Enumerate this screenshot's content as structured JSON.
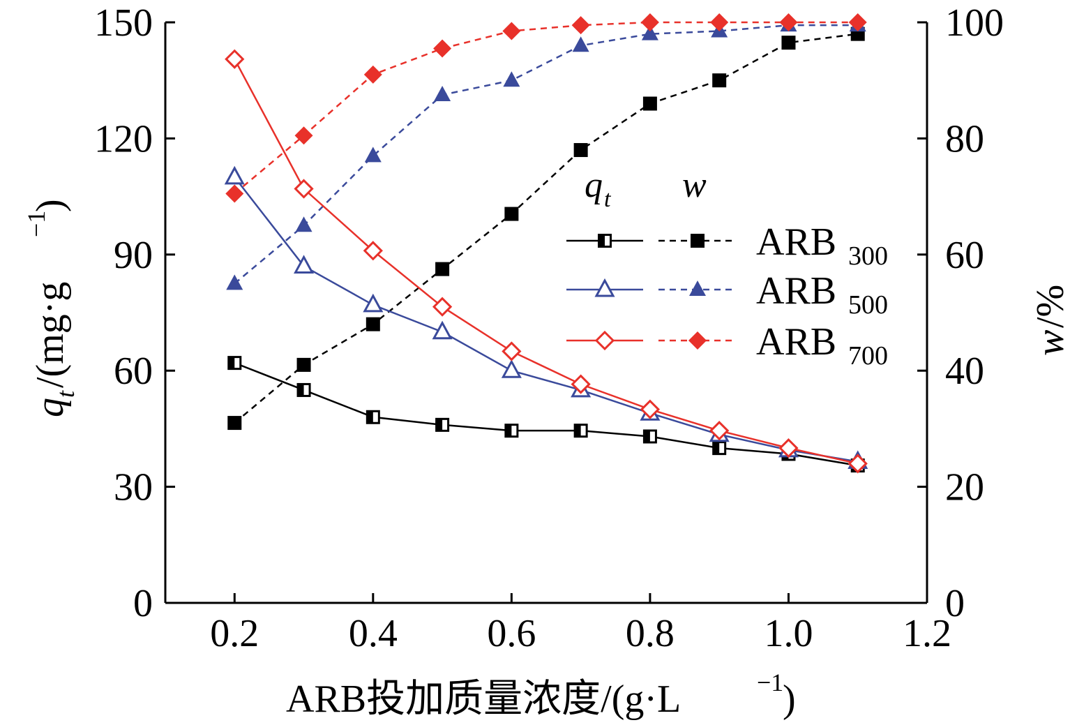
{
  "chart_data": {
    "type": "line",
    "xlabel": "ARB投加质量浓度/(g·L",
    "xlabel_sup": "−1",
    "xlabel_end": ")",
    "ylabel_left": {
      "var": "q",
      "sub": "t",
      "rest": "/(mg·g",
      "sup": "−1",
      "end": ")"
    },
    "ylabel_right": {
      "var": "w",
      "rest": "/%"
    },
    "xlim": [
      0.1,
      1.2
    ],
    "ylim_left": [
      0,
      150
    ],
    "ylim_right": [
      0,
      100
    ],
    "x_ticks": [
      "0.2",
      "0.4",
      "0.6",
      "0.8",
      "1.0",
      "1.2"
    ],
    "y_left_ticks": [
      "0",
      "30",
      "60",
      "90",
      "120",
      "150"
    ],
    "y_right_ticks": [
      "0",
      "20",
      "40",
      "60",
      "80",
      "100"
    ],
    "x": [
      0.2,
      0.3,
      0.4,
      0.5,
      0.6,
      0.7,
      0.8,
      0.9,
      1.0,
      1.1
    ],
    "legend": {
      "position": "right-center",
      "header_qt": "q",
      "header_qt_sub": "t",
      "header_w": "w",
      "entries": [
        {
          "name": "ARB",
          "sub": "300"
        },
        {
          "name": "ARB",
          "sub": "500"
        },
        {
          "name": "ARB",
          "sub": "700"
        }
      ]
    },
    "series": [
      {
        "group": "ARB300",
        "measure": "qt",
        "axis": "left",
        "style": "solid",
        "marker": "half-square",
        "color": "#000000",
        "values": [
          62,
          55,
          48,
          46,
          44.5,
          44.5,
          43,
          40,
          38.5,
          35.5
        ]
      },
      {
        "group": "ARB300",
        "measure": "w",
        "axis": "right",
        "style": "dashed",
        "marker": "filled-square",
        "color": "#000000",
        "values": [
          31,
          41,
          48,
          57.5,
          67,
          78,
          86,
          90,
          96.5,
          98
        ]
      },
      {
        "group": "ARB500",
        "measure": "qt",
        "axis": "left",
        "style": "solid",
        "marker": "open-triangle",
        "color": "#3a4a9b",
        "values": [
          110,
          87,
          77,
          70,
          60,
          55,
          49,
          43.5,
          39.5,
          36.5
        ]
      },
      {
        "group": "ARB500",
        "measure": "w",
        "axis": "right",
        "style": "dashed",
        "marker": "filled-triangle",
        "color": "#3a4a9b",
        "values": [
          55,
          65,
          77,
          87.5,
          90,
          96,
          98,
          98.5,
          99.5,
          99.5
        ]
      },
      {
        "group": "ARB700",
        "measure": "qt",
        "axis": "left",
        "style": "solid",
        "marker": "open-diamond",
        "color": "#e8312a",
        "values": [
          140.5,
          107,
          91,
          76.5,
          65,
          56.5,
          50,
          44.5,
          40,
          36
        ]
      },
      {
        "group": "ARB700",
        "measure": "w",
        "axis": "right",
        "style": "dashed",
        "marker": "filled-diamond",
        "color": "#e8312a",
        "values": [
          70.5,
          80.5,
          91,
          95.5,
          98.5,
          99.5,
          100,
          100,
          100,
          100
        ]
      }
    ]
  }
}
